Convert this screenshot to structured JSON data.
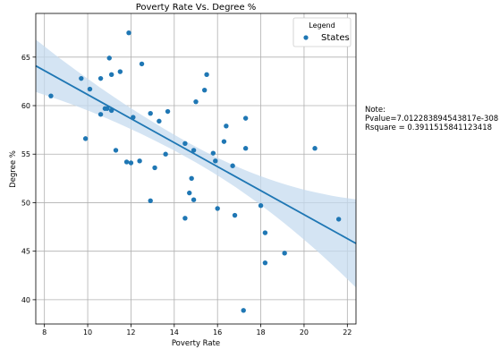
{
  "chart_data": {
    "type": "scatter",
    "title": "Poverty Rate Vs. Degree %",
    "xlabel": "Poverty Rate",
    "ylabel": "Degree %",
    "xlim": [
      7.6,
      22.4
    ],
    "ylim": [
      37.5,
      69.5
    ],
    "xticks": [
      8,
      10,
      12,
      14,
      16,
      18,
      20,
      22
    ],
    "yticks": [
      40,
      45,
      50,
      55,
      60,
      65
    ],
    "grid": true,
    "legend": {
      "title": "Legend",
      "placement": "top-right",
      "entries": [
        "States"
      ]
    },
    "colors": {
      "points": "#1f77b4",
      "line": "#1f77b4",
      "band": "#c6dbef"
    },
    "series": [
      {
        "name": "States",
        "points": [
          [
            8.3,
            61.0
          ],
          [
            9.7,
            62.8
          ],
          [
            9.9,
            56.6
          ],
          [
            10.1,
            61.7
          ],
          [
            10.6,
            59.1
          ],
          [
            10.6,
            62.8
          ],
          [
            10.8,
            59.7
          ],
          [
            10.9,
            59.7
          ],
          [
            11.0,
            64.9
          ],
          [
            11.1,
            63.2
          ],
          [
            11.1,
            59.5
          ],
          [
            11.3,
            55.4
          ],
          [
            11.5,
            63.5
          ],
          [
            11.8,
            54.2
          ],
          [
            11.9,
            67.5
          ],
          [
            12.0,
            54.1
          ],
          [
            12.1,
            58.8
          ],
          [
            12.4,
            54.3
          ],
          [
            12.5,
            64.3
          ],
          [
            12.9,
            59.2
          ],
          [
            12.9,
            50.2
          ],
          [
            13.1,
            53.6
          ],
          [
            13.3,
            58.4
          ],
          [
            13.6,
            55.0
          ],
          [
            13.7,
            59.4
          ],
          [
            14.5,
            48.4
          ],
          [
            14.5,
            56.1
          ],
          [
            14.7,
            51.0
          ],
          [
            14.8,
            52.5
          ],
          [
            14.9,
            55.4
          ],
          [
            14.9,
            50.3
          ],
          [
            15.0,
            60.4
          ],
          [
            15.4,
            61.6
          ],
          [
            15.5,
            63.2
          ],
          [
            15.8,
            55.1
          ],
          [
            15.9,
            54.3
          ],
          [
            16.0,
            49.4
          ],
          [
            16.3,
            56.3
          ],
          [
            16.4,
            57.9
          ],
          [
            16.7,
            53.8
          ],
          [
            16.8,
            48.7
          ],
          [
            17.2,
            38.9
          ],
          [
            17.3,
            55.6
          ],
          [
            17.3,
            58.7
          ],
          [
            18.0,
            49.7
          ],
          [
            18.2,
            46.9
          ],
          [
            18.2,
            43.8
          ],
          [
            19.1,
            44.8
          ],
          [
            20.5,
            55.6
          ],
          [
            21.6,
            48.3
          ]
        ]
      }
    ],
    "regression": {
      "x_range": [
        7.6,
        22.4
      ],
      "y_at_start": 64.1,
      "y_at_end": 45.8,
      "ci_upper_start": 66.8,
      "ci_lower_start": 61.4,
      "ci_upper_end": 50.4,
      "ci_lower_end": 41.3,
      "ci_mid_x": 14.7,
      "ci_mid_half_width": 0.8
    }
  },
  "note": {
    "heading": "Note:",
    "pvalue": "Pvalue=7.012283894543817e-308",
    "rsquare": "Rsquare = 0.3911515841123418"
  }
}
